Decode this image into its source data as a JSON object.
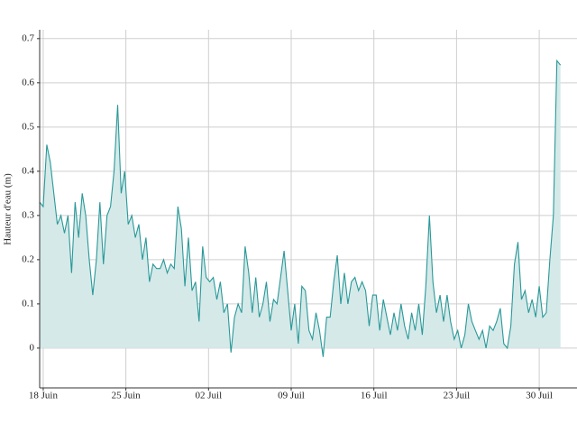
{
  "chart_data": {
    "type": "area",
    "ylabel": "Hauteur d'eau (m)",
    "color": "#2a9898",
    "fill": "#d5e9e9",
    "grid": true,
    "xlim": [
      -0.3,
      45.2
    ],
    "ylim": [
      -0.09,
      0.72
    ],
    "yticks": [
      0,
      0.1,
      0.2,
      0.3,
      0.4,
      0.5,
      0.6,
      0.7
    ],
    "xticks": [
      {
        "value": 0,
        "label": "18 Juin"
      },
      {
        "value": 7,
        "label": "25 Juin"
      },
      {
        "value": 14,
        "label": "02 Juil"
      },
      {
        "value": 21,
        "label": "09 Juil"
      },
      {
        "value": 28,
        "label": "16 Juil"
      },
      {
        "value": 35,
        "label": "23 Juil"
      },
      {
        "value": 42,
        "label": "30 Juil"
      }
    ],
    "x": [
      -0.3,
      0,
      0.3,
      0.6,
      0.9,
      1.2,
      1.5,
      1.8,
      2.1,
      2.4,
      2.7,
      3,
      3.3,
      3.6,
      3.9,
      4.2,
      4.5,
      4.8,
      5.1,
      5.4,
      5.7,
      6,
      6.3,
      6.6,
      6.9,
      7.2,
      7.5,
      7.8,
      8.1,
      8.4,
      8.7,
      9,
      9.3,
      9.6,
      9.9,
      10.2,
      10.5,
      10.8,
      11.1,
      11.4,
      11.7,
      12,
      12.3,
      12.6,
      12.9,
      13.2,
      13.5,
      13.8,
      14.1,
      14.4,
      14.7,
      15,
      15.3,
      15.6,
      15.9,
      16.2,
      16.5,
      16.8,
      17.1,
      17.4,
      17.7,
      18,
      18.3,
      18.6,
      18.9,
      19.2,
      19.5,
      19.8,
      20.1,
      20.4,
      20.7,
      21,
      21.3,
      21.6,
      21.9,
      22.2,
      22.5,
      22.8,
      23.1,
      23.4,
      23.7,
      24,
      24.3,
      24.6,
      24.9,
      25.2,
      25.5,
      25.8,
      26.1,
      26.4,
      26.7,
      27,
      27.3,
      27.6,
      27.9,
      28.2,
      28.5,
      28.8,
      29.1,
      29.4,
      29.7,
      30,
      30.3,
      30.6,
      30.9,
      31.2,
      31.5,
      31.8,
      32.1,
      32.4,
      32.7,
      33,
      33.3,
      33.6,
      33.9,
      34.2,
      34.5,
      34.8,
      35.1,
      35.4,
      35.7,
      36,
      36.3,
      36.6,
      36.9,
      37.2,
      37.5,
      37.8,
      38.1,
      38.4,
      38.7,
      39,
      39.3,
      39.6,
      39.9,
      40.2,
      40.5,
      40.8,
      41.1,
      41.4,
      41.7,
      42,
      42.3,
      42.6,
      42.9,
      43.2,
      43.5,
      43.8
    ],
    "values": [
      0.33,
      0.32,
      0.46,
      0.42,
      0.35,
      0.28,
      0.3,
      0.26,
      0.3,
      0.17,
      0.33,
      0.25,
      0.35,
      0.3,
      0.2,
      0.12,
      0.2,
      0.33,
      0.19,
      0.3,
      0.32,
      0.4,
      0.55,
      0.35,
      0.4,
      0.28,
      0.3,
      0.25,
      0.28,
      0.2,
      0.25,
      0.15,
      0.19,
      0.18,
      0.18,
      0.2,
      0.17,
      0.19,
      0.18,
      0.32,
      0.27,
      0.14,
      0.25,
      0.13,
      0.15,
      0.06,
      0.23,
      0.16,
      0.15,
      0.16,
      0.11,
      0.15,
      0.08,
      0.1,
      -0.01,
      0.07,
      0.1,
      0.08,
      0.23,
      0.17,
      0.08,
      0.16,
      0.07,
      0.1,
      0.15,
      0.06,
      0.11,
      0.1,
      0.16,
      0.22,
      0.13,
      0.04,
      0.1,
      0.01,
      0.14,
      0.13,
      0.04,
      0.02,
      0.08,
      0.04,
      -0.02,
      0.07,
      0.07,
      0.15,
      0.21,
      0.1,
      0.17,
      0.1,
      0.15,
      0.16,
      0.13,
      0.15,
      0.13,
      0.05,
      0.12,
      0.12,
      0.04,
      0.11,
      0.07,
      0.03,
      0.08,
      0.04,
      0.1,
      0.05,
      0.02,
      0.08,
      0.04,
      0.1,
      0.03,
      0.14,
      0.3,
      0.15,
      0.08,
      0.12,
      0.06,
      0.12,
      0.06,
      0.02,
      0.04,
      0,
      0.03,
      0.1,
      0.06,
      0.04,
      0.02,
      0.04,
      0,
      0.05,
      0.04,
      0.06,
      0.09,
      0.01,
      0,
      0.05,
      0.19,
      0.24,
      0.11,
      0.13,
      0.08,
      0.11,
      0.07,
      0.14,
      0.07,
      0.08,
      0.2,
      0.3,
      0.65,
      0.64
    ]
  }
}
